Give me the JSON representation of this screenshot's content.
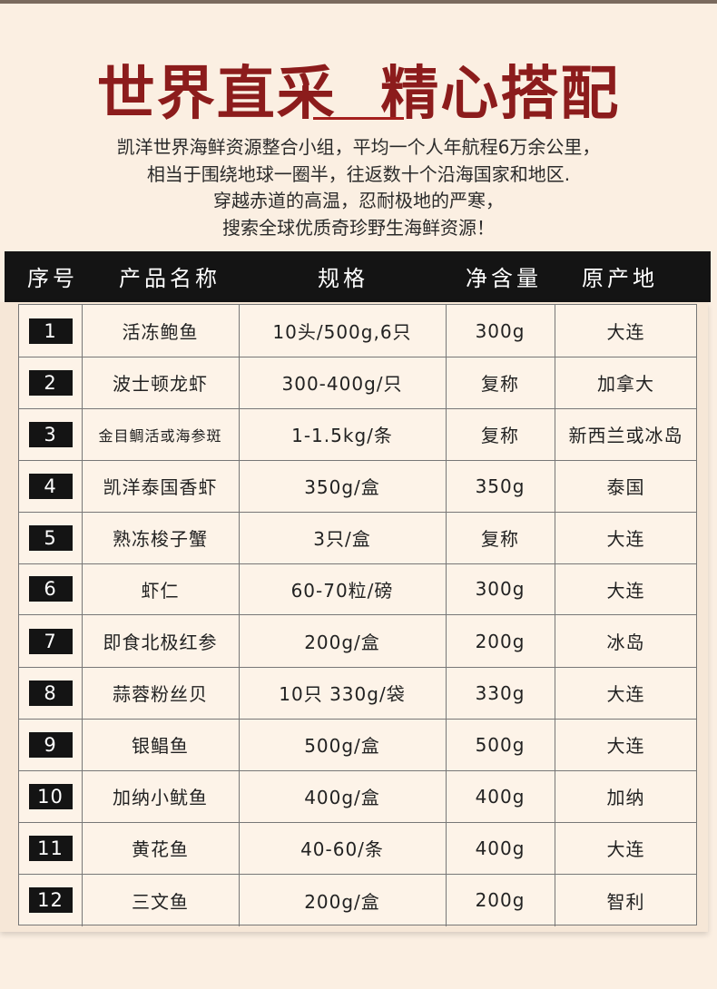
{
  "header": {
    "title": "世界直采  精心搭配",
    "lines": [
      "凯洋世界海鲜资源整合小组，平均一个人年航程6万余公里，",
      "相当于围绕地球一圈半，往返数十个沿海国家和地区.",
      "穿越赤道的高温，忍耐极地的严寒，",
      "搜索全球优质奇珍野生海鲜资源！"
    ]
  },
  "table": {
    "columns": [
      "序号",
      "产品名称",
      "规格",
      "净含量",
      "原产地"
    ],
    "rows": [
      [
        "1",
        "活冻鲍鱼",
        "10头/500g,6只",
        "300g",
        "大连"
      ],
      [
        "2",
        "波士顿龙虾",
        "300-400g/只",
        "复称",
        "加拿大"
      ],
      [
        "3",
        "金目鲷活或海参斑",
        "1-1.5kg/条",
        "复称",
        "新西兰或冰岛"
      ],
      [
        "4",
        "凯洋泰国香虾",
        "350g/盒",
        "350g",
        "泰国"
      ],
      [
        "5",
        "熟冻梭子蟹",
        "3只/盒",
        "复称",
        "大连"
      ],
      [
        "6",
        "虾仁",
        "60-70粒/磅",
        "300g",
        "大连"
      ],
      [
        "7",
        "即食北极红参",
        "200g/盒",
        "200g",
        "冰岛"
      ],
      [
        "8",
        "蒜蓉粉丝贝",
        "10只 330g/袋",
        "330g",
        "大连"
      ],
      [
        "9",
        "银鲳鱼",
        "500g/盒",
        "500g",
        "大连"
      ],
      [
        "10",
        "加纳小鱿鱼",
        "400g/盒",
        "400g",
        "加纳"
      ],
      [
        "11",
        "黄花鱼",
        "40-60/条",
        "400g",
        "大连"
      ],
      [
        "12",
        "三文鱼",
        "200g/盒",
        "200g",
        "智利"
      ]
    ]
  }
}
